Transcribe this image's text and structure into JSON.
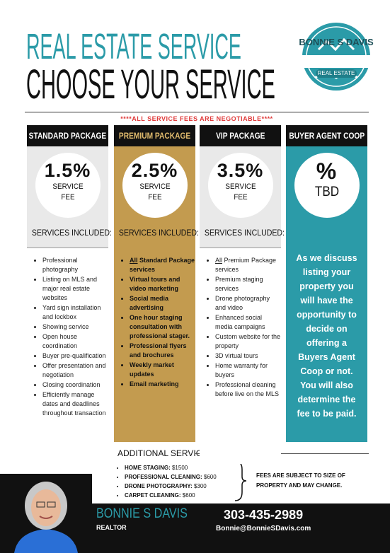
{
  "header": {
    "title": "REAL ESTATE SERVICE",
    "subtitle": "CHOOSE YOUR SERVICE",
    "logo": {
      "name": "BONNIE S DAVIS",
      "tagline": "REAL ESTATE"
    }
  },
  "notice": "****ALL SERVICE FEES ARE NEGOTIABLE****",
  "packages": [
    {
      "name": "STANDARD PACKAGE",
      "rate": "1.5%",
      "fee_label": [
        "SERVICE",
        "FEE"
      ],
      "included_label": "SERVICES INCLUDED:",
      "items": [
        "Professional photography",
        "Listing on MLS and major real estate websites",
        "Yard sign installation and lockbox",
        "Showing service",
        "Open house coordination",
        "Buyer pre-qualification",
        "Offer presentation and negotiation",
        "Closing coordination",
        "Efficiently manage dates and deadlines throughout transaction"
      ]
    },
    {
      "name": "PREMIUM PACKAGE",
      "rate": "2.5%",
      "fee_label": [
        "SERVICE",
        "FEE"
      ],
      "included_label": "SERVICES INCLUDED:",
      "items": [
        {
          "emphasis": "All",
          "text": "Standard Package services"
        },
        "Virtual tours and video marketing",
        "Social media advertising",
        "One hour staging consultation with professional stager.",
        "Professional flyers and brochures",
        "Weekly market updates",
        "Email marketing"
      ]
    },
    {
      "name": "VIP PACKAGE",
      "rate": "3.5%",
      "fee_label": [
        "SERVICE",
        "FEE"
      ],
      "included_label": "SERVICES INCLUDED:",
      "items": [
        {
          "emphasis": "All",
          "text": "Premium Package services"
        },
        "Premium staging services",
        "Drone photography and video",
        "Enhanced social media campaigns",
        "Custom website for the property",
        "3D virtual tours",
        "Home warranty for buyers",
        "Professional cleaning before live on the MLS"
      ]
    },
    {
      "name": "BUYER AGENT COOP",
      "rate": "%",
      "fee_label": [
        "TBD"
      ],
      "description": "As we discuss listing your property you will have the opportunity to decide on offering a Buyers Agent Coop or not. You will also determine the fee to be paid."
    }
  ],
  "additional": {
    "heading": "ADDITIONAL SERVICES",
    "items": [
      {
        "label": "HOME STAGING:",
        "price": "$1500"
      },
      {
        "label": "PROFESSIONAL CLEANING:",
        "price": "$600"
      },
      {
        "label": "DRONE PHOTOGRAPHY:",
        "price": "$300"
      },
      {
        "label": "CARPET CLEANING:",
        "price": "$600"
      }
    ],
    "note": "FEES ARE SUBJECT TO SIZE OF PROPERTY AND MAY CHANGE."
  },
  "footer": {
    "name": "BONNIE S DAVIS",
    "role": "REALTOR",
    "phone": "303-435-2989",
    "email": "Bonnie@BonnieSDavis.com"
  }
}
